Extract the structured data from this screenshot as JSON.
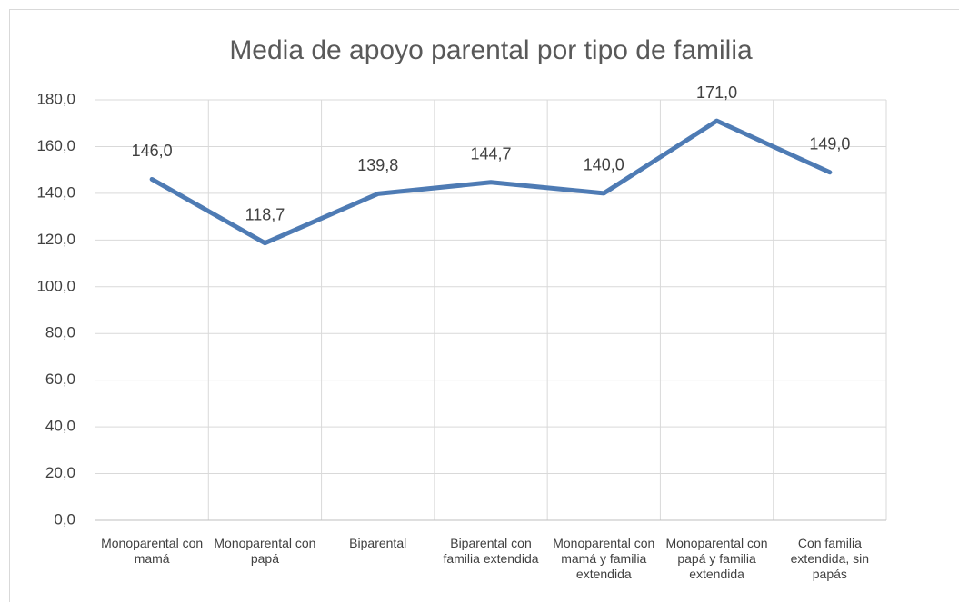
{
  "chart_data": {
    "type": "line",
    "title": "Media de apoyo parental por tipo de familia",
    "categories": [
      "Monoparental con mamá",
      "Monoparental con papá",
      "Biparental",
      "Biparental con familia extendida",
      "Monoparental con mamá y familia extendida",
      "Monoparental con papá y familia extendida",
      "Con familia extendida, sin papás"
    ],
    "series": [
      {
        "name": "Media",
        "color": "#4e7bb4",
        "values": [
          146.0,
          118.7,
          139.8,
          144.7,
          140.0,
          171.0,
          149.0
        ],
        "value_labels": [
          "146,0",
          "118,7",
          "139,8",
          "144,7",
          "140,0",
          "171,0",
          "149,0"
        ]
      }
    ],
    "ylim": [
      0,
      180
    ],
    "yticks": [
      {
        "value": 0,
        "label": "0,0"
      },
      {
        "value": 20,
        "label": "20,0"
      },
      {
        "value": 40,
        "label": "40,0"
      },
      {
        "value": 60,
        "label": "60,0"
      },
      {
        "value": 80,
        "label": "80,0"
      },
      {
        "value": 100,
        "label": "100,0"
      },
      {
        "value": 120,
        "label": "120,0"
      },
      {
        "value": 140,
        "label": "140,0"
      },
      {
        "value": 160,
        "label": "160,0"
      },
      {
        "value": 180,
        "label": "180,0"
      }
    ],
    "grid": true
  }
}
